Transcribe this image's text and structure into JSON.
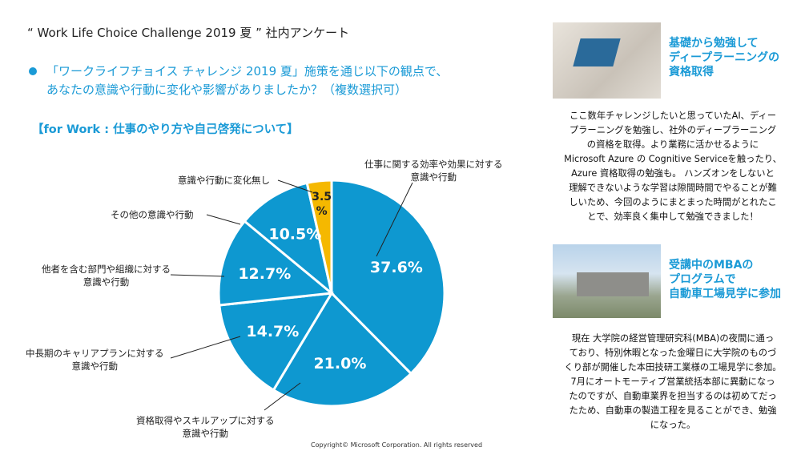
{
  "title": "“ Work Life Choice Challenge 2019 夏 ” 社内アンケート",
  "question": [
    "「ワークライフチョイス チャレンジ 2019 夏」施策を通じ以下の観点で、",
    "あなたの意識や行動に変化や影響がありましたか？（複数選択可）"
  ],
  "section": "【for Work : 仕事のやり方や自己啓発について】",
  "chart_data": {
    "type": "pie",
    "title": "【for Work : 仕事のやり方や自己啓発について】",
    "slices": [
      {
        "label": "仕事に関する効率や効果に対する意識や行動",
        "value": 37.6,
        "text": "37.6%",
        "color": "#0e98d0"
      },
      {
        "label": "資格取得やスキルアップに対する意識や行動",
        "value": 21.0,
        "text": "21.0%",
        "color": "#0e98d0"
      },
      {
        "label": "中長期のキャリアプランに対する意識や行動",
        "value": 14.7,
        "text": "14.7%",
        "color": "#0e98d0"
      },
      {
        "label": "他者を含む部門や組織に対する意識や行動",
        "value": 12.7,
        "text": "12.7%",
        "color": "#0e98d0"
      },
      {
        "label": "その他の意識や行動",
        "value": 10.5,
        "text": "10.5%",
        "color": "#0e98d0"
      },
      {
        "label": "意識や行動に変化無し",
        "value": 3.5,
        "text": "3.5%",
        "color": "#f5b800"
      }
    ]
  },
  "labels": {
    "s0": [
      "仕事に関する効率や効果に対する",
      "意識や行動"
    ],
    "s1": [
      "資格取得やスキルアップに対する",
      "意識や行動"
    ],
    "s2": [
      "中長期のキャリアプランに対する",
      "意識や行動"
    ],
    "s3": [
      "他者を含む部門や組織に対する",
      "意識や行動"
    ],
    "s4": [
      "その他の意識や行動"
    ],
    "s5": [
      "意識や行動に変化無し"
    ]
  },
  "stories": [
    {
      "heading": [
        "基礎から勉強して",
        "ディープラーニングの",
        "資格取得"
      ],
      "body": [
        "ここ数年チャレンジしたいと思っていたAI、ディー",
        "プラーニングを勉強し、社外のディープラーニング",
        "の資格を取得。より業務に活かせるように",
        "Microsoft Azure の Cognitive Serviceを触ったり、",
        "Azure 資格取得の勉強も。 ハンズオンをしないと",
        "理解できないような学習は隙間時間でやることが難",
        "しいため、今回のようにまとまった時間がとれたこ",
        "とで、効率良く集中して勉強できました！"
      ]
    },
    {
      "heading": [
        "受講中のMBAの",
        "プログラムで",
        "自動車工場見学に参加"
      ],
      "body": [
        "現在 大学院の経営管理研究科(MBA)の夜間に通っ",
        "ており、特別休暇となった金曜日に大学院のものづ",
        "くり部が開催した本田技研工業様の工場見学に参加。",
        "7月にオートモーティブ営業統括本部に異動になっ",
        "たのですが、自動車業界を担当するのは初めてだっ",
        "たため、自動車の製造工程を見ることができ、勉強",
        "になった。"
      ]
    }
  ],
  "copyright": "Copyright© Microsoft Corporation. All rights reserved"
}
